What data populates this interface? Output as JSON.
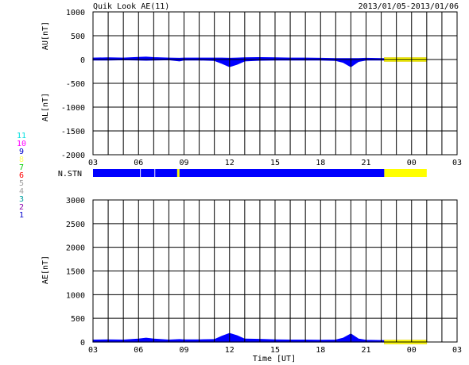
{
  "header": {
    "title": "Quik Look AE(11)",
    "date_range": "2013/01/05-2013/01/06"
  },
  "colors": {
    "data_fill": "#0000ff",
    "provisional_fill": "#ffff00",
    "grid": "#000000",
    "frame": "#000000"
  },
  "station_legend": [
    {
      "label": "11",
      "color": "#00e0e0"
    },
    {
      "label": "10",
      "color": "#ff00ff"
    },
    {
      "label": "9",
      "color": "#0000cc"
    },
    {
      "label": "8",
      "color": "#ffff60"
    },
    {
      "label": "7",
      "color": "#00cc00"
    },
    {
      "label": "6",
      "color": "#ff0000"
    },
    {
      "label": "5",
      "color": "#a0a0a0"
    },
    {
      "label": "4",
      "color": "#a0a0a0"
    },
    {
      "label": "3",
      "color": "#00a0a0"
    },
    {
      "label": "2",
      "color": "#8800aa"
    },
    {
      "label": "1",
      "color": "#0000cc"
    }
  ],
  "stn_label": "N.STN",
  "chart_data": [
    {
      "id": "au-al",
      "type": "area",
      "ylabel_upper": "AU[nT]",
      "ylabel_lower": "AL[nT]",
      "xlabel": "",
      "ylim": [
        -2000,
        1000
      ],
      "yticks": [
        1000,
        500,
        0,
        -500,
        -1000,
        -1500,
        -2000
      ],
      "xlim_hours": [
        3,
        27
      ],
      "xtick_labels": [
        "03",
        "06",
        "09",
        "12",
        "15",
        "18",
        "21",
        "00",
        "03"
      ],
      "grid": true,
      "series": [
        {
          "hours": [
            3.0,
            4.0,
            5.0,
            6.0,
            6.5,
            7.0,
            8.0,
            8.7,
            9.0,
            10.0,
            11.0,
            11.5,
            12.0,
            12.5,
            13.0,
            14.0,
            15.0,
            16.0,
            17.0,
            18.0,
            19.0,
            19.5,
            20.0,
            20.5,
            21.0,
            22.0,
            22.2
          ],
          "values": [
            30,
            35,
            30,
            45,
            50,
            40,
            30,
            25,
            30,
            30,
            30,
            30,
            25,
            30,
            35,
            40,
            35,
            30,
            30,
            25,
            20,
            20,
            20,
            20,
            25,
            20,
            20
          ]
        },
        {
          "hours": [
            3.0,
            4.0,
            5.0,
            6.0,
            6.5,
            7.0,
            8.0,
            8.7,
            9.0,
            10.0,
            11.0,
            11.5,
            12.0,
            12.5,
            13.0,
            14.0,
            15.0,
            16.0,
            17.0,
            18.0,
            19.0,
            19.5,
            20.0,
            20.5,
            21.0,
            22.0,
            22.2
          ],
          "values": [
            -10,
            -10,
            -5,
            -10,
            -15,
            -10,
            -5,
            -30,
            -10,
            -10,
            -20,
            -80,
            -150,
            -100,
            -30,
            -15,
            -10,
            -10,
            -10,
            -10,
            -20,
            -60,
            -150,
            -40,
            -10,
            -10,
            -10
          ]
        }
      ],
      "provisional_hours": [
        22.2,
        25.0
      ]
    },
    {
      "id": "ae",
      "type": "area",
      "ylabel": "AE[nT]",
      "xlabel": "Time [UT]",
      "ylim": [
        0,
        3000
      ],
      "yticks": [
        3000,
        2500,
        2000,
        1500,
        1000,
        500,
        0
      ],
      "xlim_hours": [
        3,
        27
      ],
      "xtick_labels": [
        "03",
        "06",
        "09",
        "12",
        "15",
        "18",
        "21",
        "00",
        "03"
      ],
      "grid": true,
      "series": [
        {
          "hours": [
            3.0,
            4.0,
            5.0,
            6.0,
            6.5,
            7.0,
            8.0,
            8.7,
            9.0,
            10.0,
            11.0,
            11.5,
            12.0,
            12.5,
            13.0,
            14.0,
            15.0,
            16.0,
            17.0,
            18.0,
            19.0,
            19.5,
            20.0,
            20.5,
            21.0,
            22.0,
            22.2
          ],
          "values": [
            40,
            45,
            40,
            60,
            80,
            60,
            40,
            50,
            45,
            45,
            50,
            120,
            180,
            130,
            60,
            55,
            45,
            40,
            40,
            35,
            40,
            80,
            170,
            60,
            35,
            30,
            30
          ]
        }
      ],
      "provisional_hours": [
        22.2,
        25.0
      ]
    }
  ],
  "station_bar": {
    "xlim_hours": [
      3,
      27
    ],
    "segments": [
      {
        "start": 3.0,
        "end": 6.1,
        "kind": "data"
      },
      {
        "start": 6.15,
        "end": 7.05,
        "kind": "data"
      },
      {
        "start": 7.1,
        "end": 8.55,
        "kind": "data"
      },
      {
        "start": 8.55,
        "end": 8.7,
        "kind": "provisional"
      },
      {
        "start": 8.7,
        "end": 22.2,
        "kind": "data"
      },
      {
        "start": 22.2,
        "end": 25.0,
        "kind": "provisional"
      }
    ]
  }
}
